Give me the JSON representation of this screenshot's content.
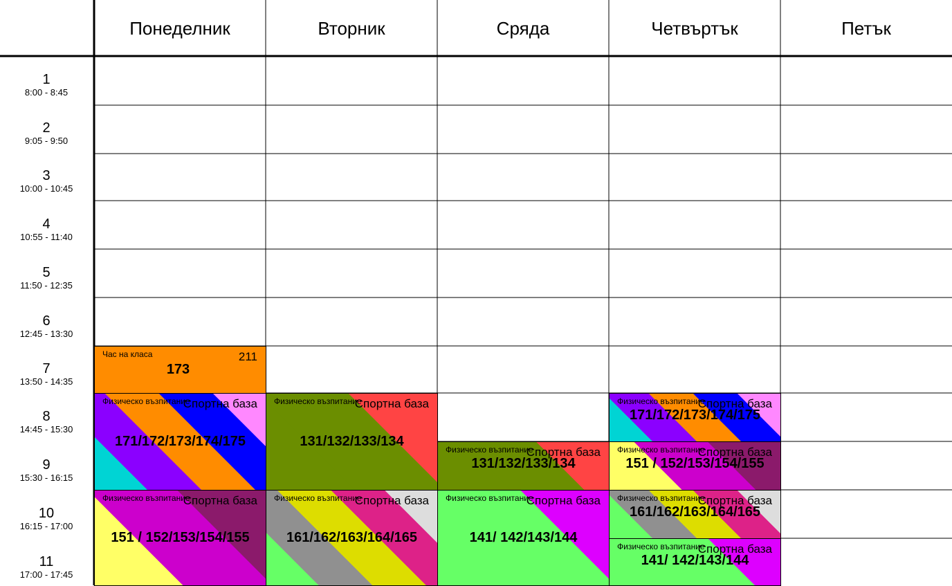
{
  "days": [
    "Понеделник",
    "Вторник",
    "Сряда",
    "Четвъртък",
    "Петък"
  ],
  "periods": [
    {
      "num": "1",
      "time": "8:00 - 8:45"
    },
    {
      "num": "2",
      "time": "9:05 - 9:50"
    },
    {
      "num": "3",
      "time": "10:00 - 10:45"
    },
    {
      "num": "4",
      "time": "10:55 - 11:40"
    },
    {
      "num": "5",
      "time": "11:50 - 12:35"
    },
    {
      "num": "6",
      "time": "12:45 - 13:30"
    },
    {
      "num": "7",
      "time": "13:50 - 14:35"
    },
    {
      "num": "8",
      "time": "14:45 - 15:30"
    },
    {
      "num": "9",
      "time": "15:30 - 16:15"
    },
    {
      "num": "10",
      "time": "16:15 - 17:00"
    },
    {
      "num": "11",
      "time": "17:00 - 17:45"
    }
  ],
  "lessons": [
    {
      "day": 0,
      "period": 7,
      "span": 1,
      "subject": "Час на класа",
      "room": "211",
      "groups": "173",
      "colors": [
        "#ff8c00"
      ]
    },
    {
      "day": 0,
      "period": 8,
      "span": 2,
      "subject": "Физическо възпитание",
      "room": "Спортна база",
      "groups": "171/172/173/174/175",
      "colors": [
        "#00d4d4",
        "#8b00ff",
        "#ff8c00",
        "#0000ff",
        "#ff88ff"
      ]
    },
    {
      "day": 0,
      "period": 10,
      "span": 2,
      "subject": "Физическо възпитание",
      "room": "Спортна база",
      "groups": "151 / 152/153/154/155",
      "colors": [
        "#ffff66",
        "#cc00cc",
        "#8b1a6b"
      ]
    },
    {
      "day": 1,
      "period": 8,
      "span": 2,
      "subject": "Физическо възпитание",
      "room": "Спортна база",
      "groups": "131/132/133/134",
      "colors": [
        "#6b8e00",
        "#6b8e00",
        "#ff4444"
      ]
    },
    {
      "day": 1,
      "period": 10,
      "span": 2,
      "subject": "Физическо възпитание",
      "room": "Спортна база",
      "groups": "161/162/163/164/165",
      "colors": [
        "#66ff66",
        "#909090",
        "#dddd00",
        "#dd2288",
        "#dddddd"
      ]
    },
    {
      "day": 2,
      "period": 9,
      "span": 1,
      "subject": "Физическо възпитание",
      "room": "Спортна база",
      "groups": "131/132/133/134",
      "colors": [
        "#6b8e00",
        "#6b8e00",
        "#ff4444"
      ]
    },
    {
      "day": 2,
      "period": 10,
      "span": 2,
      "subject": "Физическо възпитание",
      "room": "Спортна база",
      "groups": "141/ 142/143/144",
      "colors": [
        "#66ff66",
        "#66ff66",
        "#dd00ff"
      ]
    },
    {
      "day": 3,
      "period": 8,
      "span": 1,
      "subject": "Физическо възпитание",
      "room": "Спортна база",
      "groups": "171/172/173/174/175",
      "colors": [
        "#00d4d4",
        "#8b00ff",
        "#ff8c00",
        "#0000ff",
        "#ff88ff"
      ]
    },
    {
      "day": 3,
      "period": 9,
      "span": 1,
      "subject": "Физическо възпитание",
      "room": "Спортна база",
      "groups": "151 / 152/153/154/155",
      "colors": [
        "#ffff66",
        "#cc00cc",
        "#8b1a6b"
      ]
    },
    {
      "day": 3,
      "period": 10,
      "span": 1,
      "subject": "Физическо възпитание",
      "room": "Спортна база",
      "groups": "161/162/163/164/165",
      "colors": [
        "#66ff66",
        "#909090",
        "#dddd00",
        "#dd2288",
        "#dddddd"
      ]
    },
    {
      "day": 3,
      "period": 11,
      "span": 1,
      "subject": "Физическо възпитание",
      "room": "Спортна база",
      "groups": "141/ 142/143/144",
      "colors": [
        "#66ff66",
        "#66ff66",
        "#dd00ff"
      ]
    }
  ]
}
